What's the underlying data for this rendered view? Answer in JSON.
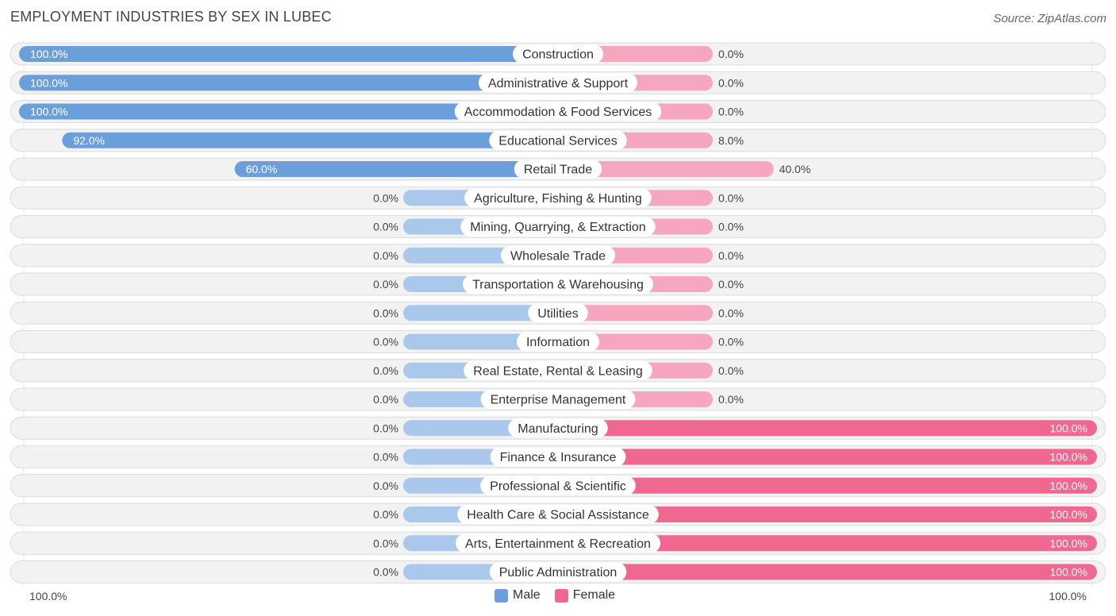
{
  "header": {
    "title": "EMPLOYMENT INDUSTRIES BY SEX IN LUBEC",
    "source": "Source: ZipAtlas.com"
  },
  "legend": {
    "male_label": "Male",
    "female_label": "Female"
  },
  "axis": {
    "left_label": "100.0%",
    "right_label": "100.0%"
  },
  "colors": {
    "male": "#6a9fdc",
    "male_light": "#a9c8ec",
    "female": "#f0678f",
    "female_light": "#f6a7bf",
    "row_bg": "#f2f2f2",
    "row_border": "#dcdcdc"
  },
  "chart_data": {
    "type": "bar",
    "orientation": "horizontal-diverging",
    "title": "EMPLOYMENT INDUSTRIES BY SEX IN LUBEC",
    "xlim": [
      -100,
      100
    ],
    "categories": [
      "Construction",
      "Administrative & Support",
      "Accommodation & Food Services",
      "Educational Services",
      "Retail Trade",
      "Agriculture, Fishing & Hunting",
      "Mining, Quarrying, & Extraction",
      "Wholesale Trade",
      "Transportation & Warehousing",
      "Utilities",
      "Information",
      "Real Estate, Rental & Leasing",
      "Enterprise Management",
      "Manufacturing",
      "Finance & Insurance",
      "Professional & Scientific",
      "Health Care & Social Assistance",
      "Arts, Entertainment & Recreation",
      "Public Administration"
    ],
    "series": [
      {
        "name": "Male",
        "values": [
          100,
          100,
          100,
          92,
          60,
          0,
          0,
          0,
          0,
          0,
          0,
          0,
          0,
          0,
          0,
          0,
          0,
          0,
          0
        ],
        "labels": [
          "100.0%",
          "100.0%",
          "100.0%",
          "92.0%",
          "60.0%",
          "0.0%",
          "0.0%",
          "0.0%",
          "0.0%",
          "0.0%",
          "0.0%",
          "0.0%",
          "0.0%",
          "0.0%",
          "0.0%",
          "0.0%",
          "0.0%",
          "0.0%",
          "0.0%"
        ]
      },
      {
        "name": "Female",
        "values": [
          0,
          0,
          0,
          8,
          40,
          0,
          0,
          0,
          0,
          0,
          0,
          0,
          0,
          100,
          100,
          100,
          100,
          100,
          100
        ],
        "labels": [
          "0.0%",
          "0.0%",
          "0.0%",
          "8.0%",
          "40.0%",
          "0.0%",
          "0.0%",
          "0.0%",
          "0.0%",
          "0.0%",
          "0.0%",
          "0.0%",
          "0.0%",
          "100.0%",
          "100.0%",
          "100.0%",
          "100.0%",
          "100.0%",
          "100.0%"
        ]
      }
    ],
    "legend_position": "bottom-center"
  }
}
